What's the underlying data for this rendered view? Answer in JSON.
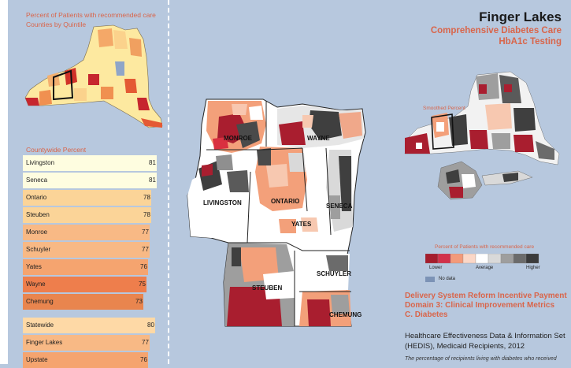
{
  "left_panel": {
    "title_line1": "Percent of Patients with recommended care",
    "title_line2": "Counties by Quintile",
    "countywide_label": "Countywide Percent",
    "counties": [
      {
        "name": "Livingston",
        "value": "81",
        "pct": 81,
        "color": "#fefde0"
      },
      {
        "name": "Seneca",
        "value": "81",
        "pct": 81,
        "color": "#fefde0"
      },
      {
        "name": "Ontario",
        "value": "78",
        "pct": 78,
        "color": "#fbd498"
      },
      {
        "name": "Steuben",
        "value": "78",
        "pct": 78,
        "color": "#fbd498"
      },
      {
        "name": "Monroe",
        "value": "77",
        "pct": 77,
        "color": "#f8b985"
      },
      {
        "name": "Schuyler",
        "value": "77",
        "pct": 77,
        "color": "#f8b985"
      },
      {
        "name": "Yates",
        "value": "76",
        "pct": 76,
        "color": "#f5a46f"
      },
      {
        "name": "Wayne",
        "value": "75",
        "pct": 75,
        "color": "#ee7e4c"
      },
      {
        "name": "Chemung",
        "value": "73",
        "pct": 73,
        "color": "#e9854e"
      }
    ],
    "summary": [
      {
        "name": "Statewide",
        "value": "80",
        "pct": 80,
        "color": "#fed9a6"
      },
      {
        "name": "Finger Lakes",
        "value": "77",
        "pct": 77,
        "color": "#f8b985"
      },
      {
        "name": "Upstate",
        "value": "76",
        "pct": 76,
        "color": "#f5a46f"
      }
    ]
  },
  "header": {
    "region": "Finger Lakes",
    "measure_line1": "Comprehensive Diabetes Care",
    "measure_line2": "HbA1c Testing"
  },
  "map": {
    "county_labels": [
      "MONROE",
      "WAYNE",
      "LIVINGSTON",
      "ONTARIO",
      "YATES",
      "SENECA",
      "SCHUYLER",
      "STEUBEN",
      "CHEMUNG"
    ],
    "smoothed_label": "Smoothed Percent"
  },
  "legend": {
    "title": "Percent of Patients with recommended care",
    "swatches": [
      "#a51d2d",
      "#d2314a",
      "#f39a7a",
      "#fbd7c7",
      "#ffffff",
      "#d9d9d9",
      "#9e9e9e",
      "#6b6b6b",
      "#3b3b3b"
    ],
    "lower": "Lower",
    "average": "Average",
    "higher": "Higher",
    "no_data": "No data",
    "no_data_color": "#7c93b6"
  },
  "program": {
    "line1": "Delivery System Reform Incentive Payment",
    "line2": "Domain 3: Clinical Improvement Metrics",
    "line3": "C. Diabetes"
  },
  "source": {
    "line1": "Healthcare Effectiveness Data & Information Set",
    "line2": "(HEDIS), Medicaid Recipients, 2012"
  },
  "footnote": "The percentage of recipients living with diabetes who received"
}
